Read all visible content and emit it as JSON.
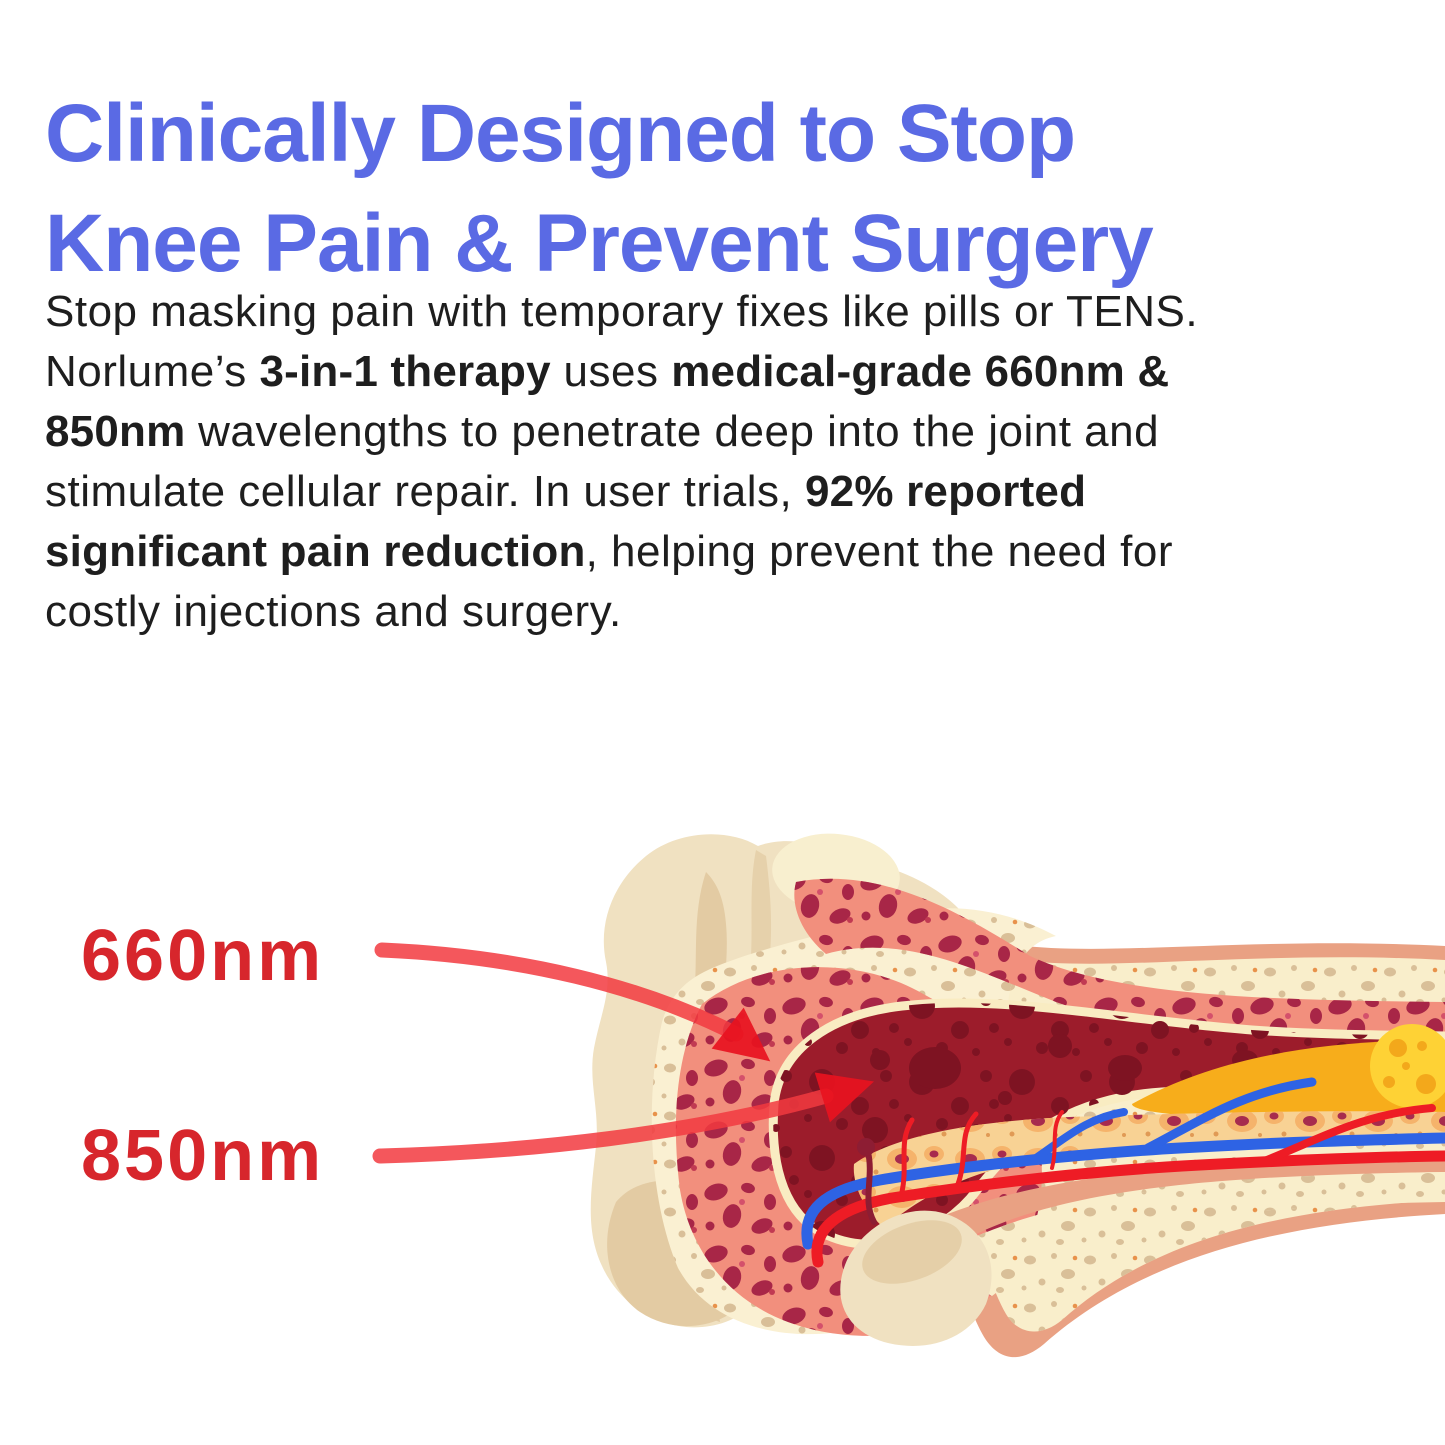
{
  "headline": {
    "line1": "Clinically Designed to Stop",
    "line2": "Knee Pain & Prevent Surgery",
    "color": "#5a6ae4"
  },
  "paragraph": {
    "lines": [
      [
        {
          "t": "Stop masking pain with temporary fixes like pills or TENS.",
          "b": false
        }
      ],
      [
        {
          "t": "Norlume’s ",
          "b": false
        },
        {
          "t": "3-in-1 therapy",
          "b": true
        },
        {
          "t": " uses ",
          "b": false
        },
        {
          "t": "medical-grade 660nm &",
          "b": true
        }
      ],
      [
        {
          "t": "850nm",
          "b": true
        },
        {
          "t": " wavelengths to penetrate deep into the joint and",
          "b": false
        }
      ],
      [
        {
          "t": "stimulate cellular repair. In user trials, ",
          "b": false
        },
        {
          "t": "92% reported",
          "b": true
        }
      ],
      [
        {
          "t": "significant pain reduction",
          "b": true
        },
        {
          "t": ", helping prevent the need for",
          "b": false
        }
      ],
      [
        {
          "t": "costly injections and surgery.",
          "b": false
        }
      ]
    ]
  },
  "diagram": {
    "type": "bone-cross-section",
    "labels": [
      {
        "id": "label-660nm",
        "text": "660nm"
      },
      {
        "id": "label-850nm",
        "text": "850nm"
      }
    ],
    "label_color": "#d7262c",
    "arrow_color": "#f23a40"
  },
  "theme": {
    "heading_blue": "#5a6ae4",
    "text_dark": "#1e1e1e",
    "label_red": "#d7262c",
    "arrow_red": "#f23a40",
    "bone_cream": "#f0e1c1",
    "bone_shadow_tan": "#e3cba3",
    "compact_bone_cream": "#f9eecb",
    "spongy_salmon": "#f28f7d",
    "spongy_oval_red": "#a82647",
    "marrow_dark_red": "#9c1c2b",
    "yellow_marrow": "#f7ad1b",
    "fat_globule_yellow": "#fed235",
    "cell_band_tan": "#f8d294",
    "vessel_blue": "#2e63e4",
    "vessel_red": "#ee1c25",
    "periosteum_salmon": "#e9a183"
  }
}
